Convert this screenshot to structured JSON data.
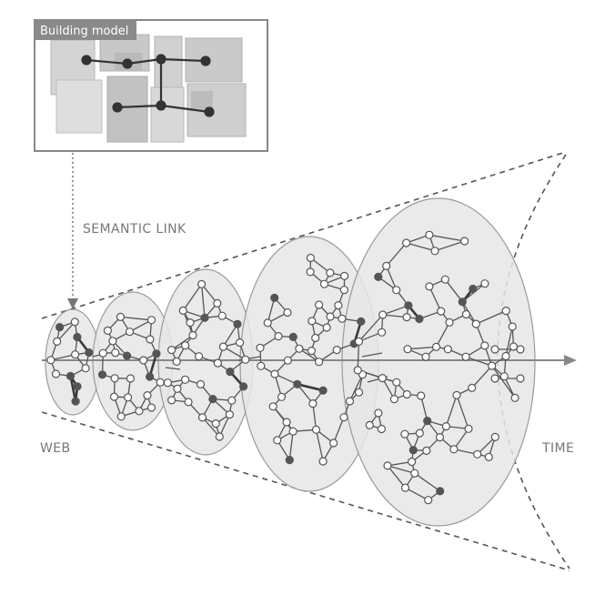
{
  "labels": {
    "inset_title": "Building model",
    "semantic_link": "SEMANTIC LINK",
    "web": "WEB",
    "time": "TIME"
  },
  "colors": {
    "line": "#555555",
    "node_fill": "#ffffff",
    "node_dark": "#555555",
    "cluster_fill": "#e6e6e6",
    "cluster_stroke": "#9a9a9a",
    "title_bg": "#8a8a8a"
  }
}
